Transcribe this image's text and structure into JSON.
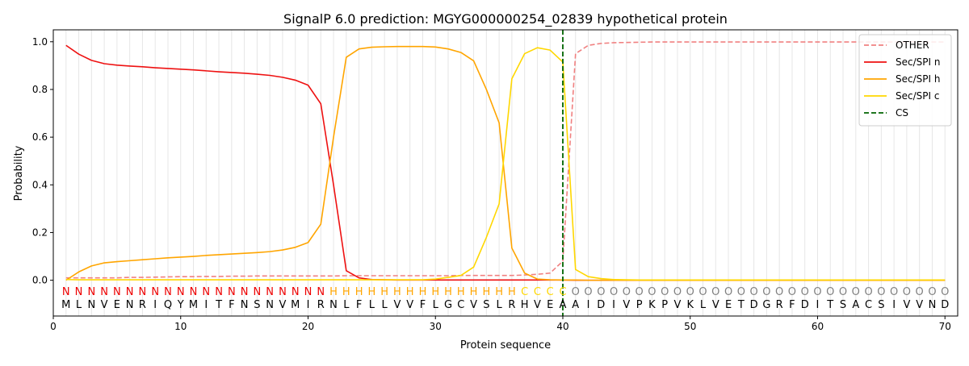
{
  "chart_data": {
    "type": "line",
    "title": "SignalP 6.0 prediction: MGYG000000254_02839 hypothetical protein",
    "xlabel": "Protein sequence",
    "ylabel": "Probability",
    "xlim": [
      0,
      71
    ],
    "ylim": [
      -0.15,
      1.05
    ],
    "x_ticks": [
      0,
      10,
      20,
      30,
      40,
      50,
      60,
      70
    ],
    "y_ticks": [
      0.0,
      0.2,
      0.4,
      0.6,
      0.8,
      1.0
    ],
    "x_tick_labels": [
      "0",
      "10",
      "20",
      "30",
      "40",
      "50",
      "60",
      "70"
    ],
    "y_tick_labels": [
      "0.0",
      "0.2",
      "0.4",
      "0.6",
      "0.8",
      "1.0"
    ],
    "grid": "vertical lines at each residue",
    "legend_position": "top-right",
    "sequence": [
      "M",
      "L",
      "N",
      "V",
      "E",
      "N",
      "R",
      "I",
      "Q",
      "Y",
      "M",
      "I",
      "T",
      "F",
      "N",
      "S",
      "N",
      "V",
      "M",
      "I",
      "R",
      "N",
      "L",
      "F",
      "L",
      "L",
      "V",
      "V",
      "F",
      "L",
      "G",
      "C",
      "V",
      "S",
      "L",
      "R",
      "H",
      "V",
      "E",
      "A",
      "A",
      "I",
      "D",
      "I",
      "V",
      "P",
      "K",
      "P",
      "V",
      "K",
      "L",
      "V",
      "E",
      "T",
      "D",
      "G",
      "R",
      "F",
      "D",
      "I",
      "T",
      "S",
      "A",
      "C",
      "S",
      "I",
      "V",
      "V",
      "N",
      "D"
    ],
    "region_labels": [
      "N",
      "N",
      "N",
      "N",
      "N",
      "N",
      "N",
      "N",
      "N",
      "N",
      "N",
      "N",
      "N",
      "N",
      "N",
      "N",
      "N",
      "N",
      "N",
      "N",
      "N",
      "H",
      "H",
      "H",
      "H",
      "H",
      "H",
      "H",
      "H",
      "H",
      "H",
      "H",
      "H",
      "H",
      "H",
      "H",
      "C",
      "C",
      "C",
      "C",
      "O",
      "O",
      "O",
      "O",
      "O",
      "O",
      "O",
      "O",
      "O",
      "O",
      "O",
      "O",
      "O",
      "O",
      "O",
      "O",
      "O",
      "O",
      "O",
      "O",
      "O",
      "O",
      "O",
      "O",
      "O",
      "O",
      "O",
      "O",
      "O",
      "O"
    ],
    "region_colors": {
      "N": "#ee0000",
      "H": "#ffa500",
      "C": "#ffd700",
      "O": "#808080"
    },
    "x": [
      1,
      2,
      3,
      4,
      5,
      6,
      7,
      8,
      9,
      10,
      11,
      12,
      13,
      14,
      15,
      16,
      17,
      18,
      19,
      20,
      21,
      22,
      23,
      24,
      25,
      26,
      27,
      28,
      29,
      30,
      31,
      32,
      33,
      34,
      35,
      36,
      37,
      38,
      39,
      40,
      41,
      42,
      43,
      44,
      45,
      46,
      47,
      48,
      49,
      50,
      51,
      52,
      53,
      54,
      55,
      56,
      57,
      58,
      59,
      60,
      61,
      62,
      63,
      64,
      65,
      66,
      67,
      68,
      69,
      70
    ],
    "series": [
      {
        "name": "OTHER",
        "color": "#f08080",
        "dash": "dashed",
        "values": [
          0.01,
          0.01,
          0.01,
          0.01,
          0.01,
          0.012,
          0.012,
          0.013,
          0.014,
          0.015,
          0.015,
          0.016,
          0.016,
          0.017,
          0.017,
          0.018,
          0.018,
          0.018,
          0.018,
          0.018,
          0.018,
          0.018,
          0.019,
          0.019,
          0.019,
          0.019,
          0.019,
          0.019,
          0.019,
          0.019,
          0.019,
          0.02,
          0.02,
          0.02,
          0.02,
          0.02,
          0.022,
          0.025,
          0.03,
          0.08,
          0.95,
          0.985,
          0.993,
          0.996,
          0.997,
          0.998,
          0.999,
          0.999,
          0.999,
          0.999,
          0.999,
          0.999,
          0.999,
          0.999,
          0.999,
          0.999,
          0.999,
          0.999,
          0.999,
          0.999,
          0.999,
          0.999,
          0.999,
          0.999,
          0.999,
          0.999,
          0.999,
          0.999,
          0.999,
          0.999
        ]
      },
      {
        "name": "Sec/SPI n",
        "color": "#ee1111",
        "dash": "solid",
        "values": [
          0.985,
          0.948,
          0.922,
          0.908,
          0.902,
          0.898,
          0.895,
          0.891,
          0.888,
          0.885,
          0.882,
          0.878,
          0.874,
          0.871,
          0.868,
          0.864,
          0.859,
          0.851,
          0.839,
          0.818,
          0.74,
          0.4,
          0.04,
          0.01,
          0.003,
          0.002,
          0.001,
          0.001,
          0.001,
          0.001,
          0.001,
          0.001,
          0.001,
          0.001,
          0.001,
          0.001,
          0.001,
          0.001,
          0.001,
          0.001,
          0,
          0,
          0,
          0,
          0,
          0,
          0,
          0,
          0,
          0,
          0,
          0,
          0,
          0,
          0,
          0,
          0,
          0,
          0,
          0,
          0,
          0,
          0,
          0,
          0,
          0,
          0,
          0,
          0,
          0
        ]
      },
      {
        "name": "Sec/SPI h",
        "color": "#ffa500",
        "dash": "solid",
        "values": [
          0.0,
          0.035,
          0.06,
          0.073,
          0.078,
          0.082,
          0.086,
          0.09,
          0.094,
          0.097,
          0.1,
          0.104,
          0.107,
          0.11,
          0.113,
          0.116,
          0.12,
          0.127,
          0.138,
          0.158,
          0.235,
          0.6,
          0.935,
          0.97,
          0.977,
          0.979,
          0.98,
          0.98,
          0.98,
          0.978,
          0.97,
          0.955,
          0.92,
          0.8,
          0.66,
          0.135,
          0.03,
          0.005,
          0.002,
          0.001,
          0.001,
          0,
          0,
          0,
          0,
          0,
          0,
          0,
          0,
          0,
          0,
          0,
          0,
          0,
          0,
          0,
          0,
          0,
          0,
          0,
          0,
          0,
          0,
          0,
          0,
          0,
          0,
          0,
          0,
          0
        ]
      },
      {
        "name": "Sec/SPI c",
        "color": "#ffd700",
        "dash": "solid",
        "values": [
          0.003,
          0.002,
          0.002,
          0.002,
          0.002,
          0.002,
          0.002,
          0.002,
          0.002,
          0.002,
          0.002,
          0.002,
          0.002,
          0.002,
          0.002,
          0.002,
          0.002,
          0.002,
          0.002,
          0.002,
          0.002,
          0.002,
          0.002,
          0.002,
          0.002,
          0.002,
          0.002,
          0.002,
          0.002,
          0.005,
          0.012,
          0.02,
          0.055,
          0.18,
          0.32,
          0.845,
          0.95,
          0.975,
          0.965,
          0.915,
          0.045,
          0.015,
          0.007,
          0.003,
          0.002,
          0.001,
          0.001,
          0.001,
          0.001,
          0.001,
          0.001,
          0.001,
          0.001,
          0.001,
          0.001,
          0.001,
          0.001,
          0.001,
          0.001,
          0.001,
          0.001,
          0.001,
          0.001,
          0.001,
          0.001,
          0.001,
          0.001,
          0.001,
          0.001,
          0.001
        ]
      }
    ],
    "cs": {
      "name": "CS",
      "x": 40,
      "color": "#006400",
      "dash": "dashed"
    }
  }
}
